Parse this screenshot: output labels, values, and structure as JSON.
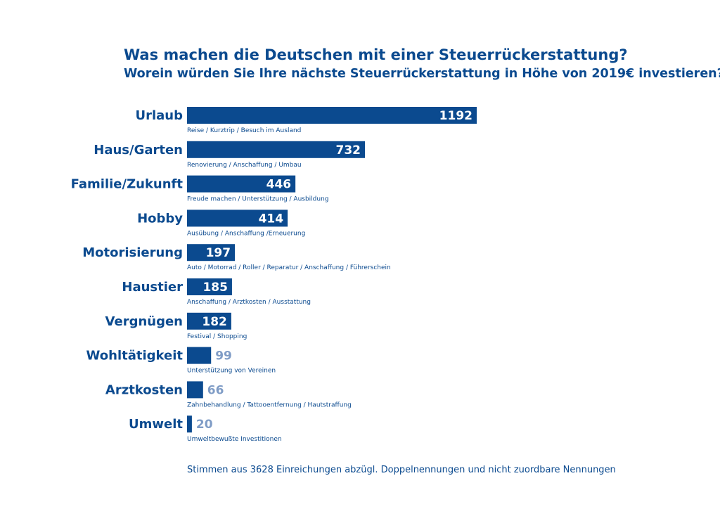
{
  "title": "Was machen die Deutschen mit einer Steuerrückerstattung?",
  "subtitle": "Worein würden Sie Ihre nächste Steuerrückerstattung in Höhe von 2019€ investieren?",
  "footnote": "Stimmen aus 3628 Einreichungen abzügl. Doppelnennungen und nicht zuordbare Nennungen",
  "colors": {
    "bar": "#0b4a8f",
    "label_inside": "#ffffff",
    "label_outside": "#7f9cc6",
    "text": "#0b4a8f"
  },
  "chart_data": {
    "type": "bar",
    "orientation": "horizontal",
    "categories": [
      "Urlaub",
      "Haus/Garten",
      "Familie/Zukunft",
      "Hobby",
      "Motorisierung",
      "Haustier",
      "Vergnügen",
      "Wohltätigkeit",
      "Arztkosten",
      "Umwelt"
    ],
    "values": [
      1192,
      732,
      446,
      414,
      197,
      185,
      182,
      99,
      66,
      20
    ],
    "descriptions": [
      "Reise / Kurztrip / Besuch im Ausland",
      "Renovierung / Anschaffung / Umbau",
      "Freude machen / Unterstützung / Ausbildung",
      "Ausübung / Anschaffung /Erneuerung",
      "Auto / Motorrad / Roller / Reparatur / Anschaffung / Führerschein",
      "Anschaffung / Arztkosten / Ausstattung",
      "Festival / Shopping",
      "Unterstützung von Vereinen",
      "Zahnbehandlung / Tattooentfernung / Hautstraffung",
      "Umweltbewußte Investitionen"
    ],
    "data_labels": [
      "1192",
      "732",
      "446",
      "414",
      "197",
      "185",
      "182",
      "99",
      "66",
      "20"
    ],
    "grid": false,
    "legend": "none"
  }
}
